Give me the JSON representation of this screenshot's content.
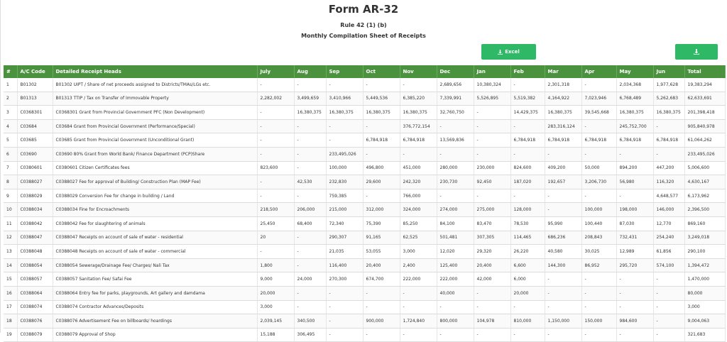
{
  "header": {
    "title": "Form AR-32",
    "rule": "Rule 42 (1) (b)",
    "subtitle": "Monthly Compilation Sheet of Receipts"
  },
  "buttons": {
    "excel_label": "Excel",
    "excel_icon": "download-icon",
    "download_icon": "download-icon",
    "accent": "#2fb865"
  },
  "table": {
    "header_bg": "#4b923f",
    "columns": [
      "#",
      "A/C Code",
      "Detailed Receipt Heads",
      "July",
      "Aug",
      "Sep",
      "Oct",
      "Nov",
      "Dec",
      "Jan",
      "Feb",
      "Mar",
      "Apr",
      "May",
      "Jun",
      "Total"
    ],
    "rows": [
      [
        "1",
        "B01302",
        "B01302 UIPT / Share of net proceeds assigned to Districts/TMAs/LGs etc.",
        "-",
        "-",
        "-",
        "-",
        "-",
        "2,689,656",
        "10,380,324",
        "-",
        "2,301,318",
        "-",
        "2,034,368",
        "1,977,628",
        "19,383,294"
      ],
      [
        "2",
        "B01313",
        "B01313 TTIP / Tax on Transfer of Immovable Property",
        "2,282,002",
        "3,499,659",
        "3,410,966",
        "5,449,536",
        "6,385,220",
        "7,339,991",
        "5,526,895",
        "5,519,382",
        "4,164,922",
        "7,023,946",
        "6,768,489",
        "5,262,683",
        "62,633,691"
      ],
      [
        "3",
        "C0368301",
        "C0368301 Grant from Provincial Government PFC (Non Development)",
        "-",
        "16,380,375",
        "16,380,375",
        "16,380,375",
        "16,380,375",
        "32,760,750",
        "-",
        "14,429,375",
        "16,380,375",
        "39,545,668",
        "16,380,375",
        "16,380,375",
        "201,398,418"
      ],
      [
        "4",
        "C03684",
        "C03684 Grant from Provincial Government (Performance/Special)",
        "-",
        "-",
        "-",
        "-",
        "376,772,154",
        "-",
        "-",
        "-",
        "283,316,124",
        "-",
        "245,752,700",
        "-",
        "905,840,978"
      ],
      [
        "5",
        "C03685",
        "C03685 Grant from Provincial Government (Unconditional Grant)",
        "-",
        "-",
        "-",
        "6,784,918",
        "6,784,918",
        "13,569,836",
        "-",
        "6,784,918",
        "6,784,918",
        "6,784,918",
        "6,784,918",
        "6,784,918",
        "61,064,262"
      ],
      [
        "6",
        "C03690",
        "C03690 80% Grant from World Bank/ Finance Department (PCP)Share",
        "-",
        "-",
        "233,495,026",
        "-",
        "-",
        "-",
        "-",
        "-",
        "-",
        "-",
        "-",
        "-",
        "233,495,026"
      ],
      [
        "7",
        "C0380601",
        "C0380601 Citizen Certificates fees",
        "823,600",
        "-",
        "100,000",
        "496,800",
        "451,000",
        "280,000",
        "230,000",
        "824,600",
        "409,200",
        "50,000",
        "894,200",
        "447,200",
        "5,006,600"
      ],
      [
        "8",
        "C0388027",
        "C0388027 Fee for approval of Building/ Construction Plan (MAP Fee)",
        "-",
        "42,530",
        "232,830",
        "29,600",
        "242,320",
        "230,730",
        "92,450",
        "187,020",
        "192,657",
        "3,206,730",
        "56,980",
        "116,320",
        "4,630,167"
      ],
      [
        "9",
        "C0388029",
        "C0388029 Conversion Fee for change in building / Land",
        "-",
        "-",
        "759,385",
        "-",
        "766,000",
        "-",
        "-",
        "-",
        "-",
        "-",
        "-",
        "4,648,577",
        "6,173,962"
      ],
      [
        "10",
        "C0388034",
        "C0388034 Fine for Encroachments",
        "218,500",
        "206,000",
        "215,000",
        "312,000",
        "324,000",
        "274,000",
        "275,000",
        "128,000",
        "-",
        "100,000",
        "198,000",
        "146,000",
        "2,396,500"
      ],
      [
        "11",
        "C0388042",
        "C0388042 Fee for slaughtering of animals",
        "25,450",
        "68,400",
        "72,340",
        "75,390",
        "85,250",
        "84,100",
        "83,470",
        "78,530",
        "95,990",
        "100,440",
        "87,030",
        "12,770",
        "869,160"
      ],
      [
        "12",
        "C0388047",
        "C0388047 Receipts on account of sale of water - residential",
        "20",
        "-",
        "290,307",
        "91,165",
        "62,525",
        "501,481",
        "307,305",
        "114,465",
        "686,236",
        "208,843",
        "732,431",
        "254,240",
        "3,249,018"
      ],
      [
        "13",
        "C0388048",
        "C0388048 Receipts on account of sale of water - commercial",
        "-",
        "-",
        "21,035",
        "53,055",
        "3,000",
        "12,020",
        "29,320",
        "26,220",
        "40,580",
        "30,025",
        "12,989",
        "61,856",
        "290,100"
      ],
      [
        "14",
        "C0388054",
        "C0388054 Sewerage/Drainage Fee/ Charges/ Nali Tax",
        "1,800",
        "-",
        "116,400",
        "20,400",
        "2,400",
        "125,400",
        "20,400",
        "6,600",
        "144,300",
        "86,952",
        "295,720",
        "574,100",
        "1,394,472"
      ],
      [
        "15",
        "C0388057",
        "C0388057 Sanitation Fee/ Safai Fee",
        "9,000",
        "24,000",
        "270,300",
        "674,700",
        "222,000",
        "222,000",
        "42,000",
        "6,000",
        "-",
        "-",
        "-",
        "-",
        "1,470,000"
      ],
      [
        "16",
        "C0388064",
        "C0388064 Entry fee for parks, playgrounds, Art gallery and damdama",
        "20,000",
        "-",
        "-",
        "-",
        "-",
        "40,000",
        "-",
        "20,000",
        "-",
        "-",
        "-",
        "-",
        "80,000"
      ],
      [
        "17",
        "C0388074",
        "C0388074 Contractor Advances/Deposits",
        "3,000",
        "-",
        "-",
        "-",
        "-",
        "-",
        "-",
        "-",
        "-",
        "-",
        "-",
        "-",
        "3,000"
      ],
      [
        "18",
        "C0388076",
        "C0388076 Advertisement Fee on billboards/ hoardings",
        "2,039,145",
        "340,500",
        "-",
        "900,000",
        "1,724,840",
        "800,000",
        "104,978",
        "810,000",
        "1,150,000",
        "150,000",
        "984,600",
        "-",
        "9,004,063"
      ],
      [
        "19",
        "C0388079",
        "C0388079 Approval of Shop",
        "15,188",
        "306,495",
        "-",
        "-",
        "-",
        "-",
        "-",
        "-",
        "-",
        "-",
        "-",
        "-",
        "321,683"
      ]
    ]
  }
}
